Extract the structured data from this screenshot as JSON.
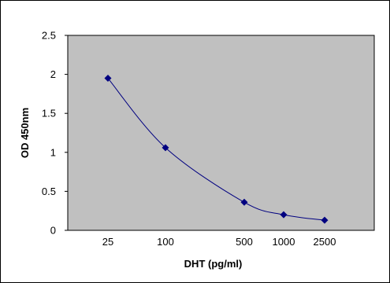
{
  "chart_data": {
    "type": "scatter",
    "title": "",
    "xlabel": "DHT (pg/ml)",
    "ylabel": "OD 450nm",
    "x_scale": "log",
    "x_tick_labels": [
      "25",
      "100",
      "500",
      "1000",
      "2500"
    ],
    "y_ticks": [
      0,
      0.5,
      1,
      1.5,
      2,
      2.5
    ],
    "y_tick_labels": [
      "0",
      "0.5",
      "1",
      "1.5",
      "2",
      "2.5"
    ],
    "ylim": [
      0,
      2.5
    ],
    "grid": false,
    "legend": "none",
    "series": [
      {
        "marker": "diamond",
        "line": "smooth",
        "points": [
          {
            "x": 25,
            "y": 1.95
          },
          {
            "x": 100,
            "y": 1.06
          },
          {
            "x": 500,
            "y": 0.36
          },
          {
            "x": 1000,
            "y": 0.2
          },
          {
            "x": 2500,
            "y": 0.13
          }
        ]
      }
    ],
    "colors": {
      "plot_background": "#c0c0c0",
      "series": "#000080",
      "axis": "#000000"
    }
  }
}
